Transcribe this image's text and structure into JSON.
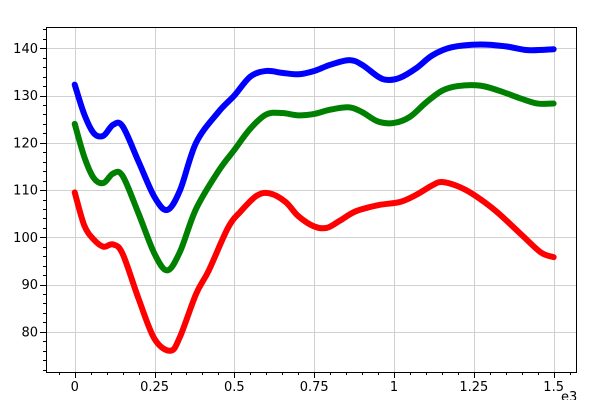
{
  "chart_data": {
    "type": "line",
    "title": "",
    "xlabel": "",
    "ylabel": "",
    "x_scale_note": "e3",
    "xlim": [
      -0.09,
      1.57
    ],
    "ylim": [
      71.5,
      144.5
    ],
    "grid": true,
    "legend": "none",
    "x_ticks": [
      {
        "value": 0,
        "label": "0"
      },
      {
        "value": 0.25,
        "label": "0.25"
      },
      {
        "value": 0.5,
        "label": "0.5"
      },
      {
        "value": 0.75,
        "label": "0.75"
      },
      {
        "value": 1,
        "label": "1"
      },
      {
        "value": 1.25,
        "label": "1.25"
      },
      {
        "value": 1.5,
        "label": "1.5"
      }
    ],
    "y_ticks": [
      {
        "value": 80,
        "label": "80"
      },
      {
        "value": 90,
        "label": "90"
      },
      {
        "value": 100,
        "label": "100"
      },
      {
        "value": 110,
        "label": "110"
      },
      {
        "value": 120,
        "label": "120"
      },
      {
        "value": 130,
        "label": "130"
      },
      {
        "value": 140,
        "label": "140"
      }
    ],
    "series": [
      {
        "color": "#0000ff",
        "points": [
          [
            0,
            132.3
          ],
          [
            0.03,
            126
          ],
          [
            0.06,
            122
          ],
          [
            0.09,
            121.5
          ],
          [
            0.12,
            123.8
          ],
          [
            0.15,
            123.5
          ],
          [
            0.2,
            116
          ],
          [
            0.25,
            108.5
          ],
          [
            0.29,
            105.8
          ],
          [
            0.33,
            110
          ],
          [
            0.38,
            120
          ],
          [
            0.45,
            126.5
          ],
          [
            0.5,
            130
          ],
          [
            0.55,
            134
          ],
          [
            0.6,
            135.2
          ],
          [
            0.65,
            134.8
          ],
          [
            0.7,
            134.5
          ],
          [
            0.75,
            135.2
          ],
          [
            0.8,
            136.5
          ],
          [
            0.86,
            137.5
          ],
          [
            0.9,
            136.5
          ],
          [
            0.95,
            134
          ],
          [
            0.98,
            133.3
          ],
          [
            1.02,
            133.8
          ],
          [
            1.07,
            135.8
          ],
          [
            1.12,
            138.5
          ],
          [
            1.18,
            140.2
          ],
          [
            1.27,
            140.8
          ],
          [
            1.35,
            140.4
          ],
          [
            1.42,
            139.6
          ],
          [
            1.5,
            139.8
          ]
        ]
      },
      {
        "color": "#008000",
        "points": [
          [
            0,
            124
          ],
          [
            0.03,
            117
          ],
          [
            0.06,
            112.5
          ],
          [
            0.09,
            111.5
          ],
          [
            0.12,
            113.5
          ],
          [
            0.15,
            113
          ],
          [
            0.2,
            105
          ],
          [
            0.25,
            96.5
          ],
          [
            0.29,
            93
          ],
          [
            0.33,
            97
          ],
          [
            0.38,
            106
          ],
          [
            0.45,
            114
          ],
          [
            0.5,
            118.5
          ],
          [
            0.55,
            123
          ],
          [
            0.6,
            126
          ],
          [
            0.65,
            126.3
          ],
          [
            0.7,
            125.8
          ],
          [
            0.75,
            126.1
          ],
          [
            0.8,
            127
          ],
          [
            0.86,
            127.5
          ],
          [
            0.9,
            126.5
          ],
          [
            0.95,
            124.5
          ],
          [
            1.0,
            124.2
          ],
          [
            1.05,
            125.5
          ],
          [
            1.1,
            128.5
          ],
          [
            1.15,
            131
          ],
          [
            1.2,
            132
          ],
          [
            1.27,
            132.1
          ],
          [
            1.33,
            131
          ],
          [
            1.4,
            129.3
          ],
          [
            1.45,
            128.3
          ],
          [
            1.5,
            128.3
          ]
        ]
      },
      {
        "color": "#ff0000",
        "points": [
          [
            0,
            109.5
          ],
          [
            0.03,
            102.5
          ],
          [
            0.06,
            99.5
          ],
          [
            0.09,
            98
          ],
          [
            0.12,
            98.5
          ],
          [
            0.15,
            96.5
          ],
          [
            0.2,
            87
          ],
          [
            0.25,
            78.5
          ],
          [
            0.3,
            76
          ],
          [
            0.33,
            79
          ],
          [
            0.38,
            88
          ],
          [
            0.42,
            93
          ],
          [
            0.48,
            102
          ],
          [
            0.52,
            105.5
          ],
          [
            0.57,
            108.8
          ],
          [
            0.61,
            109.3
          ],
          [
            0.66,
            107.5
          ],
          [
            0.7,
            104.5
          ],
          [
            0.75,
            102.3
          ],
          [
            0.79,
            102
          ],
          [
            0.83,
            103.5
          ],
          [
            0.88,
            105.5
          ],
          [
            0.95,
            106.8
          ],
          [
            1.02,
            107.5
          ],
          [
            1.07,
            109
          ],
          [
            1.12,
            111
          ],
          [
            1.15,
            111.7
          ],
          [
            1.2,
            110.8
          ],
          [
            1.25,
            109
          ],
          [
            1.32,
            105.5
          ],
          [
            1.4,
            100.5
          ],
          [
            1.46,
            96.8
          ],
          [
            1.5,
            95.8
          ]
        ]
      }
    ]
  }
}
